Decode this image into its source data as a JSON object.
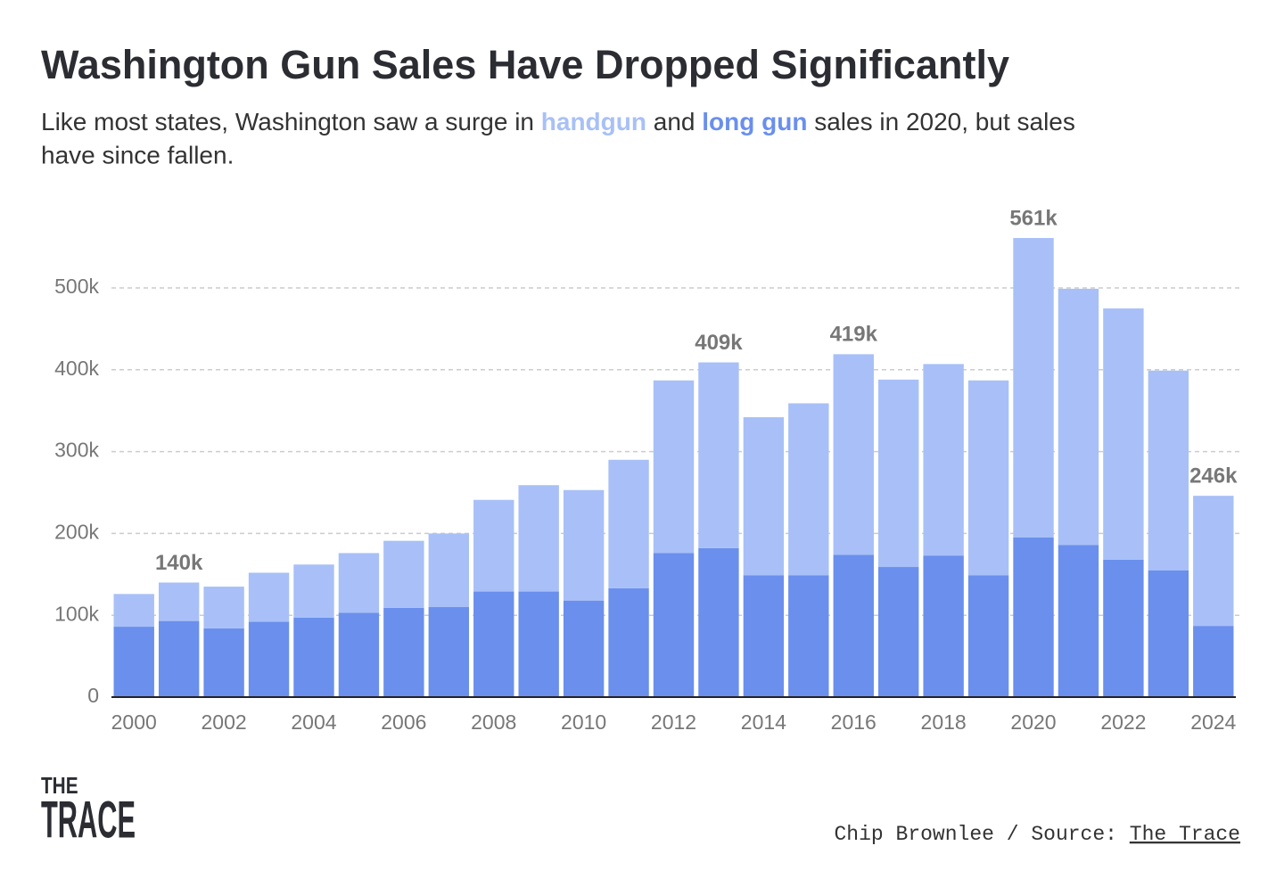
{
  "chart_data": {
    "type": "stacked_bar",
    "title": "Washington Gun Sales Have Dropped Significantly",
    "subtitle_parts": [
      "Like most states, Washington saw a surge in ",
      " and ",
      " sales in 2020, but sales have since fallen."
    ],
    "categories": [
      "2000",
      null,
      "2002",
      null,
      "2004",
      null,
      "2006",
      null,
      "2008",
      null,
      "2010",
      null,
      "2012",
      null,
      "2014",
      null,
      "2016",
      null,
      "2018",
      null,
      "2020",
      null,
      "2022",
      null,
      "2024"
    ],
    "series": [
      {
        "name": "long gun",
        "color": "#6a8fed",
        "values": [
          86,
          93,
          84,
          92,
          97,
          103,
          109,
          110,
          129,
          129,
          118,
          133,
          176,
          182,
          149,
          149,
          174,
          159,
          173,
          149,
          195,
          186,
          168,
          155,
          87
        ]
      },
      {
        "name": "handgun",
        "color": "#a8c0f7",
        "values": [
          40,
          47,
          51,
          60,
          65,
          73,
          82,
          90,
          112,
          130,
          135,
          157,
          211,
          227,
          193,
          210,
          245,
          229,
          234,
          238,
          366,
          313,
          307,
          244,
          159
        ]
      }
    ],
    "annotations": [
      {
        "value": 140,
        "label": "140k"
      },
      {
        "value": 409,
        "label": "409k"
      },
      {
        "value": 419,
        "label": "419k"
      },
      {
        "value": 561,
        "label": "561k"
      },
      {
        "value": 246,
        "label": "246k"
      }
    ],
    "ylim": [
      0,
      600
    ],
    "yticks": [
      0,
      {
        "value": 100,
        "label": "100k"
      },
      {
        "value": 200,
        "label": "200k"
      },
      {
        "value": 300,
        "label": "300k"
      },
      {
        "value": 400,
        "label": "400k"
      },
      {
        "value": 500,
        "label": "500k"
      }
    ],
    "grid": true,
    "logo": [
      "THE",
      "TRACE"
    ],
    "credit": "Chip Brownlee / Source: ",
    "source": "The Trace"
  }
}
